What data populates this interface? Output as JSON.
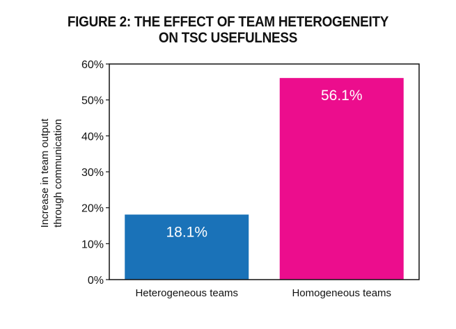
{
  "title": {
    "line1": "FIGURE 2: THE EFFECT OF TEAM HETEROGENEITY",
    "line2": "ON TSC USEFULNESS"
  },
  "colors": {
    "heterogeneous": "#1a72b8",
    "homogeneous": "#ec0d8d",
    "axis": "#111111",
    "text": "#111111",
    "bar_label": "#ffffff"
  },
  "chart_data": {
    "type": "bar",
    "title": "FIGURE 2: THE EFFECT OF TEAM HETEROGENEITY ON TSC USEFULNESS",
    "categories": [
      "Heterogeneous teams",
      "Homogeneous teams"
    ],
    "values": [
      18.1,
      56.1
    ],
    "data_labels": [
      "18.1%",
      "56.1%"
    ],
    "ylabel": "Increase in team output through communication",
    "ylabel_lines": [
      "Increase in team output",
      "through communication"
    ],
    "xlabel": "",
    "ylim": [
      0,
      60
    ],
    "yticks": [
      0,
      10,
      20,
      30,
      40,
      50,
      60
    ],
    "ytick_labels": [
      "0%",
      "10%",
      "20%",
      "30%",
      "40%",
      "50%",
      "60%"
    ],
    "grid": false,
    "legend": "none"
  }
}
